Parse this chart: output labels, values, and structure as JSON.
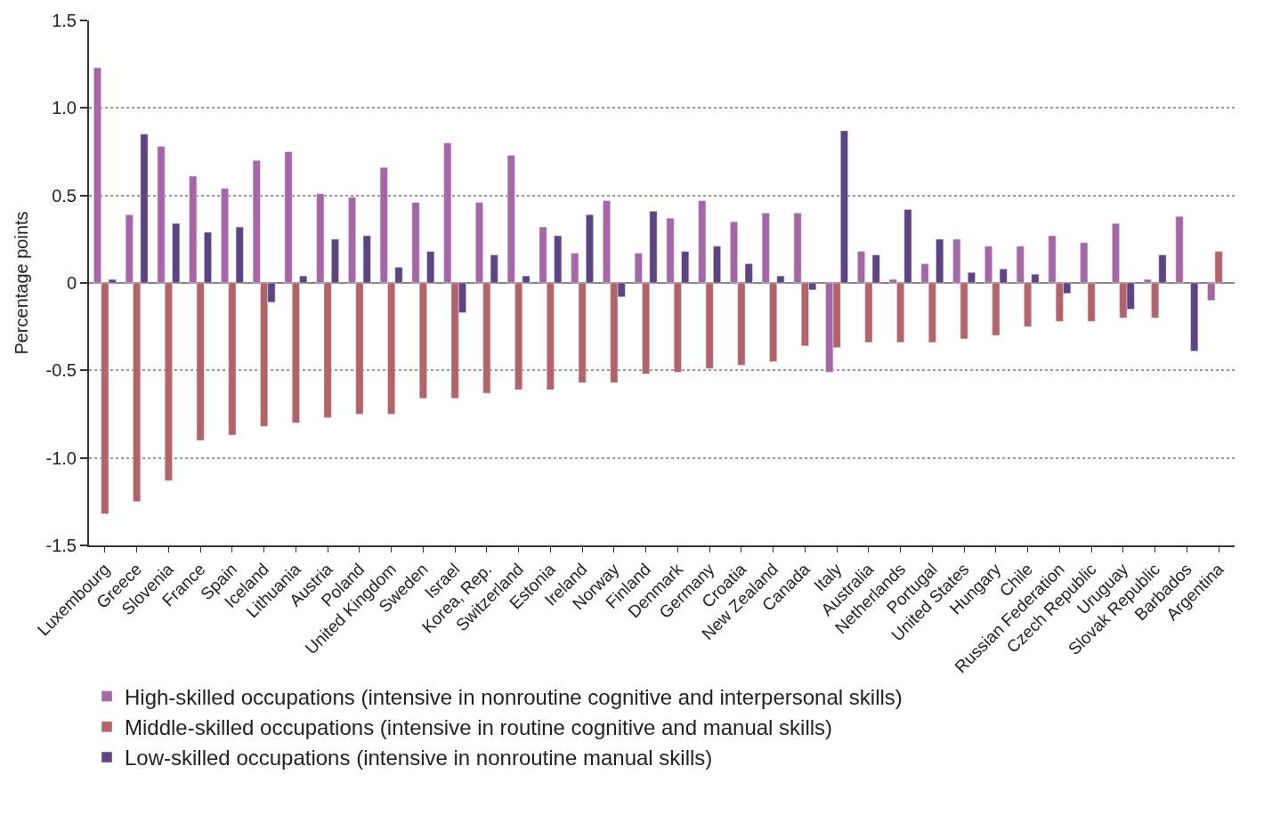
{
  "chart_data": {
    "type": "bar",
    "ylabel": "Percentage points",
    "categories": [
      "Luxembourg",
      "Greece",
      "Slovenia",
      "France",
      "Spain",
      "Iceland",
      "Lithuania",
      "Austria",
      "Poland",
      "United Kingdom",
      "Sweden",
      "Israel",
      "Korea, Rep.",
      "Switzerland",
      "Estonia",
      "Ireland",
      "Norway",
      "Finland",
      "Denmark",
      "Germany",
      "Croatia",
      "New Zealand",
      "Canada",
      "Italy",
      "Australia",
      "Netherlands",
      "Portugal",
      "United States",
      "Hungary",
      "Chile",
      "Russian Federation",
      "Czech Republic",
      "Uruguay",
      "Slovak Republic",
      "Barbados",
      "Argentina"
    ],
    "series": [
      {
        "name": "High-skilled occupations (intensive in nonroutine cognitive and interpersonal skills)",
        "color": "#a666a8",
        "values": [
          1.23,
          0.39,
          0.78,
          0.61,
          0.54,
          0.7,
          0.75,
          0.51,
          0.49,
          0.66,
          0.46,
          0.8,
          0.46,
          0.73,
          0.32,
          0.17,
          0.47,
          0.17,
          0.37,
          0.47,
          0.35,
          0.4,
          0.4,
          -0.51,
          0.18,
          0.02,
          0.11,
          0.25,
          0.21,
          0.21,
          0.27,
          0.23,
          0.34,
          0.02,
          0.38,
          -0.1
        ]
      },
      {
        "name": "Middle-skilled occupations (intensive in routine cognitive and manual skills)",
        "color": "#b5636a",
        "values": [
          -1.32,
          -1.25,
          -1.13,
          -0.9,
          -0.87,
          -0.82,
          -0.8,
          -0.77,
          -0.75,
          -0.75,
          -0.66,
          -0.66,
          -0.63,
          -0.61,
          -0.61,
          -0.57,
          -0.57,
          -0.52,
          -0.51,
          -0.49,
          -0.47,
          -0.45,
          -0.36,
          -0.37,
          -0.34,
          -0.34,
          -0.34,
          -0.32,
          -0.3,
          -0.25,
          -0.22,
          -0.22,
          -0.2,
          -0.2,
          null,
          0.18
        ]
      },
      {
        "name": "Low-skilled occupations (intensive in nonroutine manual skills)",
        "color": "#5f4483",
        "values": [
          0.02,
          0.85,
          0.34,
          0.29,
          0.32,
          -0.11,
          0.04,
          0.25,
          0.27,
          0.09,
          0.18,
          -0.17,
          0.16,
          0.04,
          0.27,
          0.39,
          -0.08,
          0.41,
          0.18,
          0.21,
          0.11,
          0.04,
          -0.04,
          0.87,
          0.16,
          0.42,
          0.25,
          0.06,
          0.08,
          0.05,
          -0.06,
          null,
          -0.15,
          0.16,
          -0.39,
          null
        ]
      }
    ],
    "ylim": [
      -1.5,
      1.5
    ],
    "yticks": [
      -1.5,
      {
        "value": -1.0,
        "label": "-1.0"
      },
      -0.5,
      0,
      0.5,
      {
        "value": 1.0,
        "label": "1.0"
      },
      1.5
    ],
    "grid": "y",
    "legend": "bottom"
  }
}
